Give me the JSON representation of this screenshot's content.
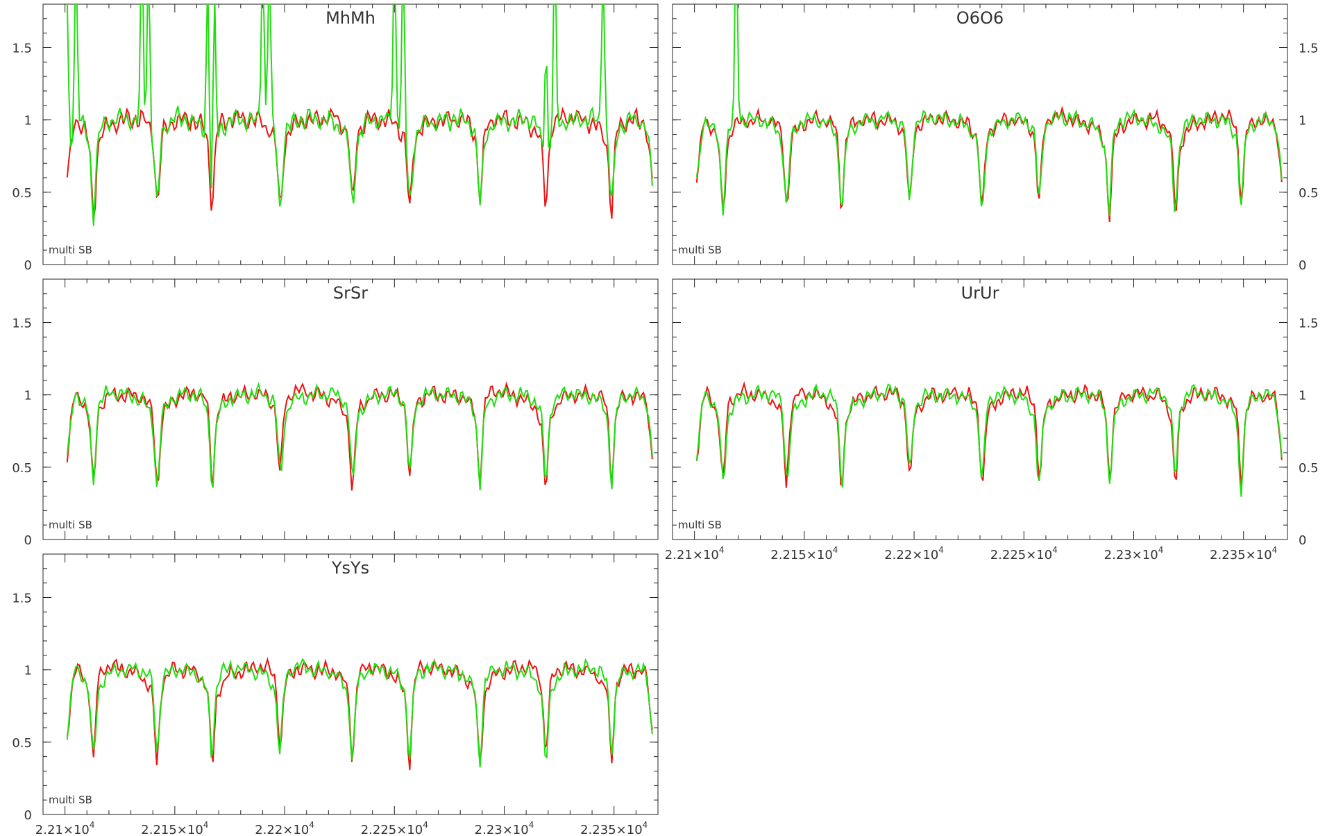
{
  "chart_data": [
    {
      "type": "line",
      "title": "MhMh",
      "annotation": "multi SB",
      "ylim": [
        0,
        1.8
      ],
      "yticks": [
        0,
        0.5,
        1,
        1.5
      ],
      "ytick_labels": [
        "0",
        "0.5",
        "1",
        "1.5"
      ],
      "xlim": [
        22090,
        22370
      ],
      "y_axis_side": "left",
      "show_x_labels": false,
      "series_colors": [
        "#ee1111",
        "#22dd11"
      ],
      "dips": [
        22113,
        22142,
        22167,
        22198,
        22231,
        22257,
        22289,
        22319,
        22349
      ],
      "peaks_green": [
        22101,
        22105,
        22135,
        22138,
        22165,
        22168,
        22190,
        22193,
        22250,
        22254,
        22319,
        22323,
        22345
      ],
      "noise": 0.04
    },
    {
      "type": "line",
      "title": "O6O6",
      "annotation": "multi SB",
      "ylim": [
        0,
        1.8
      ],
      "yticks": [
        0,
        0.5,
        1,
        1.5
      ],
      "ytick_labels": [
        "0",
        "0.5",
        "1",
        "1.5"
      ],
      "xlim": [
        22090,
        22370
      ],
      "y_axis_side": "right",
      "show_x_labels": false,
      "series_colors": [
        "#ee1111",
        "#22dd11"
      ],
      "dips": [
        22113,
        22142,
        22167,
        22198,
        22231,
        22257,
        22289,
        22319,
        22349
      ],
      "peaks_green": [
        22119
      ],
      "noise": 0.03
    },
    {
      "type": "line",
      "title": "SrSr",
      "annotation": "multi SB",
      "ylim": [
        0,
        1.8
      ],
      "yticks": [
        0,
        0.5,
        1,
        1.5
      ],
      "ytick_labels": [
        "0",
        "0.5",
        "1",
        "1.5"
      ],
      "xlim": [
        22090,
        22370
      ],
      "y_axis_side": "left",
      "show_x_labels": false,
      "series_colors": [
        "#ee1111",
        "#22dd11"
      ],
      "dips": [
        22113,
        22142,
        22167,
        22198,
        22231,
        22257,
        22289,
        22319,
        22349
      ],
      "peaks_green": [],
      "noise": 0.03
    },
    {
      "type": "line",
      "title": "UrUr",
      "annotation": "multi SB",
      "ylim": [
        0,
        1.8
      ],
      "yticks": [
        0,
        0.5,
        1,
        1.5
      ],
      "ytick_labels": [
        "0",
        "0.5",
        "1",
        "1.5"
      ],
      "xlim": [
        22090,
        22370
      ],
      "y_axis_side": "right",
      "show_x_labels": true,
      "x_tick_labels": [
        "2.21×10",
        "2.215×10",
        "2.22×10",
        "2.225×10",
        "2.23×10",
        "2.235×10"
      ],
      "x_tick_values": [
        22100,
        22150,
        22200,
        22250,
        22300,
        22350
      ],
      "x_tick_exponent": "4",
      "series_colors": [
        "#ee1111",
        "#22dd11"
      ],
      "dips": [
        22113,
        22142,
        22167,
        22198,
        22231,
        22257,
        22289,
        22319,
        22349
      ],
      "peaks_green": [],
      "noise": 0.03
    },
    {
      "type": "line",
      "title": "YsYs",
      "annotation": "multi SB",
      "ylim": [
        0,
        1.8
      ],
      "yticks": [
        0,
        0.5,
        1,
        1.5
      ],
      "ytick_labels": [
        "0",
        "0.5",
        "1",
        "1.5"
      ],
      "xlim": [
        22090,
        22370
      ],
      "y_axis_side": "left",
      "show_x_labels": true,
      "x_tick_labels": [
        "2.21×10",
        "2.215×10",
        "2.22×10",
        "2.225×10",
        "2.23×10",
        "2.235×10"
      ],
      "x_tick_values": [
        22100,
        22150,
        22200,
        22250,
        22300,
        22350
      ],
      "x_tick_exponent": "4",
      "series_colors": [
        "#ee1111",
        "#22dd11"
      ],
      "dips": [
        22113,
        22142,
        22167,
        22198,
        22231,
        22257,
        22289,
        22319,
        22349
      ],
      "peaks_green": [],
      "noise": 0.03
    }
  ]
}
